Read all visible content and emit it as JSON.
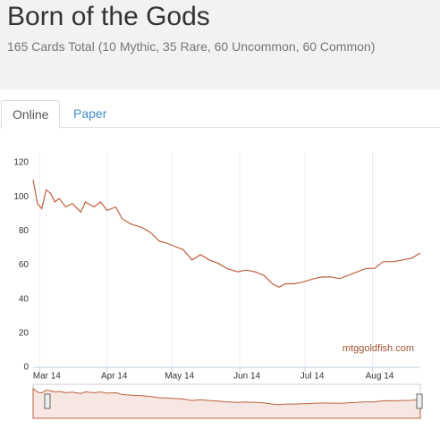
{
  "header": {
    "title": "Born of the Gods",
    "subtitle": "165 Cards Total (10 Mythic, 35 Rare, 60 Uncommon, 60 Common)"
  },
  "tabs": [
    "Online",
    "Paper"
  ],
  "chart_data": {
    "type": "line",
    "credit": "mtggoldfish.com",
    "color": "#c0603f",
    "grid": true,
    "x": [
      -3,
      -1,
      1,
      3,
      5,
      7,
      9,
      12,
      15,
      19,
      21,
      25,
      28,
      31,
      35,
      38,
      42,
      47,
      51,
      55,
      58,
      62,
      66,
      70,
      74,
      78,
      82,
      86,
      91,
      95,
      99,
      103,
      107,
      110,
      113,
      117,
      121,
      126,
      130,
      134,
      138,
      142,
      146,
      150,
      154,
      158,
      163,
      167,
      171,
      175
    ],
    "values": [
      110,
      96,
      93,
      104,
      102,
      97,
      99,
      94,
      96,
      91,
      97,
      94,
      97,
      92,
      94,
      87,
      84,
      82,
      79,
      74,
      73,
      71,
      69,
      63,
      66,
      63,
      61,
      58,
      56,
      57,
      56,
      54,
      49,
      47,
      49,
      49,
      50,
      52,
      53,
      53,
      52,
      54,
      56,
      58,
      58,
      62,
      62,
      63,
      64,
      67
    ],
    "xlim": [
      -3,
      175
    ],
    "xticks": [
      {
        "value": 0,
        "label": "Mar 14"
      },
      {
        "value": 31,
        "label": "Apr 14"
      },
      {
        "value": 61,
        "label": "May 14"
      },
      {
        "value": 92,
        "label": "Jun 14"
      },
      {
        "value": 122,
        "label": "Jul 14"
      },
      {
        "value": 153,
        "label": "Aug 14"
      }
    ],
    "ylim": [
      0,
      120
    ],
    "yticks": [
      0,
      20,
      40,
      60,
      80,
      100,
      120
    ]
  }
}
